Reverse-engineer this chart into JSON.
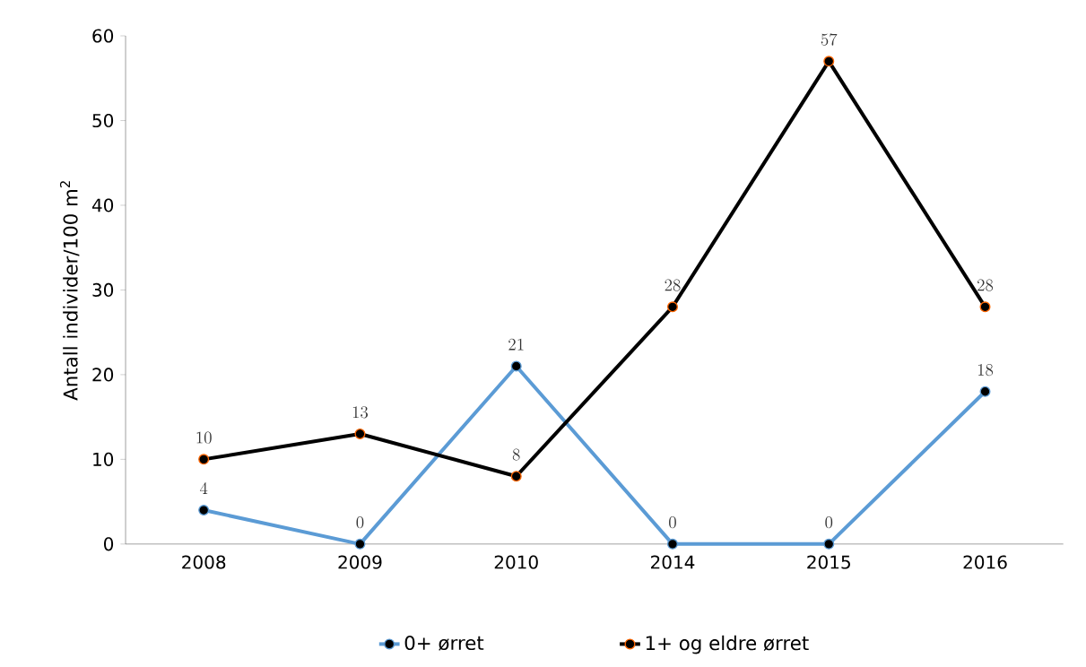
{
  "chart_data": {
    "type": "line",
    "ylabel": "Antall individer/100 m$^{2}$",
    "categories": [
      "2008",
      "2009",
      "2010",
      "2014",
      "2015",
      "2016"
    ],
    "series": [
      {
        "name": "0+ ørret",
        "color": "#5b9bd5",
        "values": [
          4,
          0,
          21,
          0,
          0,
          18
        ]
      },
      {
        "name": "1+ og eldre ørret",
        "color": "#000000",
        "values": [
          10,
          13,
          8,
          28,
          57,
          28
        ]
      }
    ],
    "ylim": [
      0,
      60
    ],
    "yticks": [
      0,
      10,
      20,
      30,
      40,
      50,
      60
    ],
    "grid": false,
    "legend": "bottom",
    "marker": "circle",
    "line_style": "solid",
    "data_labels": true
  }
}
